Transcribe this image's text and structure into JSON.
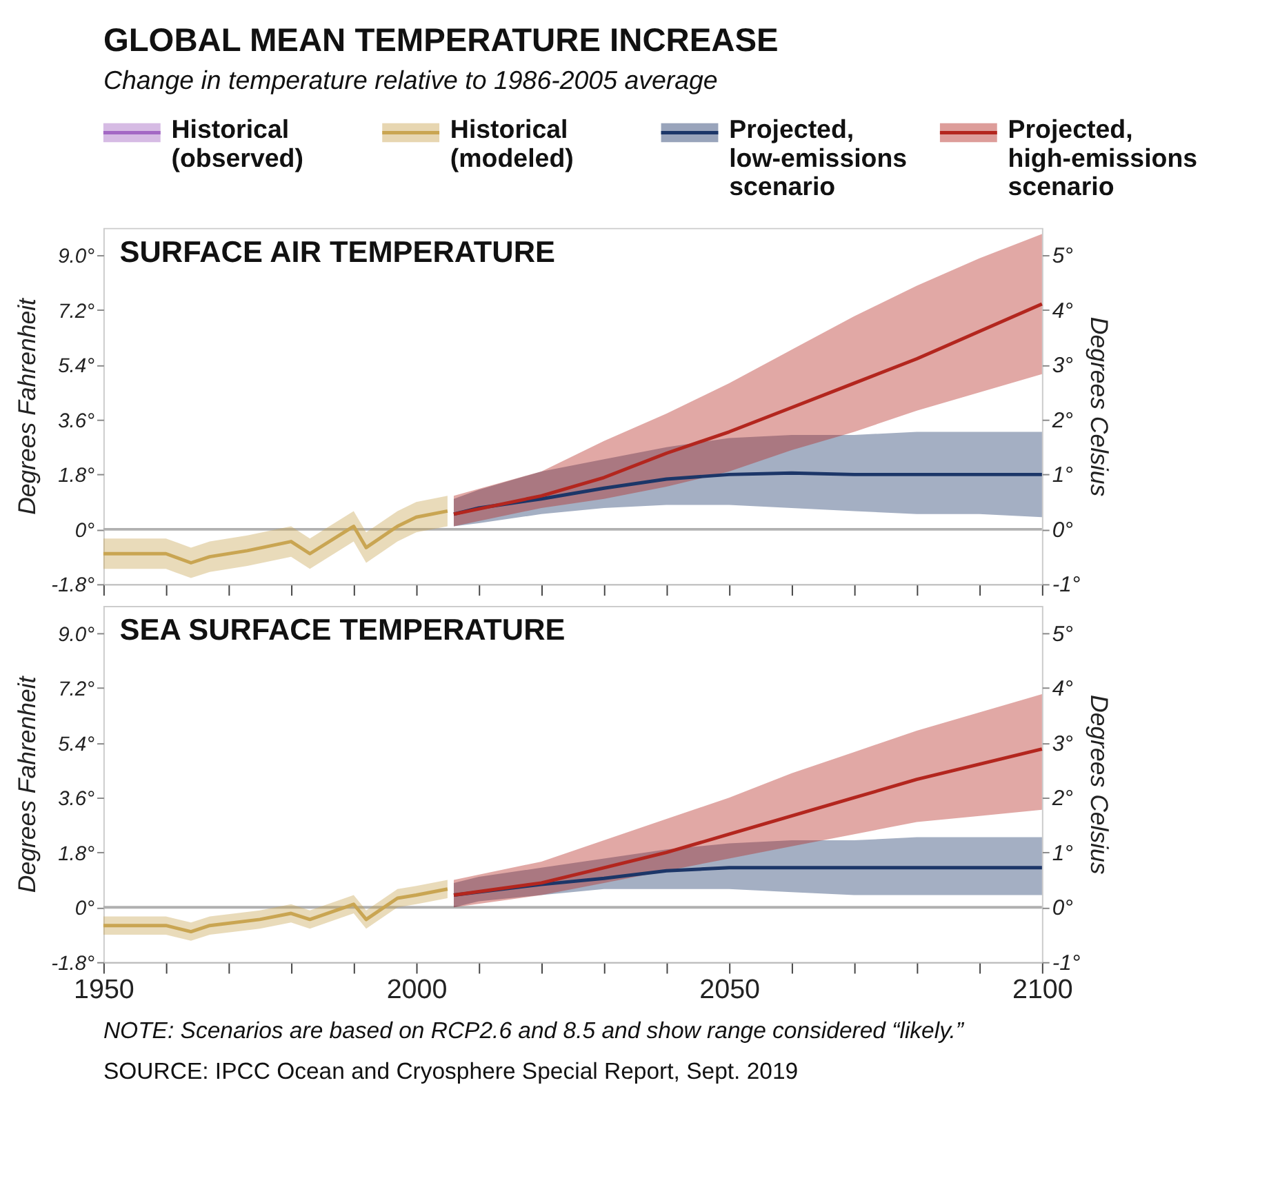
{
  "chart_data": [
    {
      "type": "line",
      "title": "SURFACE AIR TEMPERATURE",
      "ylabel": "Degrees Fahrenheit",
      "y2label": "Degrees Celsius",
      "annotations": [
        "GLOBAL MEAN TEMPERATURE INCREASE",
        "Change in temperature relative to 1986-2005 average"
      ],
      "legend": "top",
      "tick_labels": "y",
      "xlim": [
        1950,
        2100
      ],
      "xticks": [
        1950,
        {
          "value": 1960,
          "label": null
        },
        {
          "value": 1970,
          "label": null
        },
        {
          "value": 1980,
          "label": null
        },
        {
          "value": 1990,
          "label": null
        },
        2000,
        {
          "value": 2010,
          "label": null
        },
        {
          "value": 2020,
          "label": null
        },
        {
          "value": 2030,
          "label": null
        },
        {
          "value": 2040,
          "label": null
        },
        2050,
        {
          "value": 2060,
          "label": null
        },
        {
          "value": 2070,
          "label": null
        },
        {
          "value": 2080,
          "label": null
        },
        {
          "value": 2090,
          "label": null
        },
        2100
      ],
      "ylim": [
        -1.8,
        9.9
      ],
      "yticks": [
        {
          "value": -1.8,
          "label": "-1.8°"
        },
        {
          "value": 0,
          "label": "0°"
        },
        {
          "value": 1.8,
          "label": "1.8°"
        },
        {
          "value": 3.6,
          "label": "3.6°"
        },
        {
          "value": 5.4,
          "label": "5.4°"
        },
        {
          "value": 7.2,
          "label": "7.2°"
        },
        {
          "value": 9.0,
          "label": "9.0°"
        }
      ],
      "y2lim": [
        -1,
        5.5
      ],
      "y2ticks": [
        {
          "value": -1,
          "label": "-1°"
        },
        {
          "value": 0,
          "label": "0°"
        },
        {
          "value": 1,
          "label": "1°"
        },
        {
          "value": 2,
          "label": "2°"
        },
        {
          "value": 3,
          "label": "3°"
        },
        {
          "value": 4,
          "label": "4°"
        },
        {
          "value": 5,
          "label": "5°"
        }
      ],
      "ref_lines": [
        {
          "axis": "y",
          "value": 0,
          "color": "#b0b0b0"
        }
      ],
      "series": [
        {
          "name": "Historical (observed)",
          "color": "#a368c4"
        },
        {
          "name": "Historical (modeled)",
          "color": "#c9a552",
          "x": [
            1950,
            1960,
            1964,
            1967,
            1973,
            1980,
            1983,
            1990,
            1992,
            1997,
            2000,
            2005
          ],
          "values": [
            -0.8,
            -0.8,
            -1.1,
            -0.9,
            -0.7,
            -0.4,
            -0.8,
            0.1,
            -0.6,
            0.1,
            0.4,
            0.6
          ],
          "lower": [
            -1.3,
            -1.3,
            -1.6,
            -1.4,
            -1.2,
            -0.9,
            -1.3,
            -0.4,
            -1.1,
            -0.4,
            -0.1,
            0.1
          ],
          "upper": [
            -0.3,
            -0.3,
            -0.6,
            -0.4,
            -0.2,
            0.1,
            -0.3,
            0.6,
            -0.1,
            0.6,
            0.9,
            1.1
          ]
        },
        {
          "name": "Projected, low-emissions scenario",
          "color": "#1c3668",
          "x": [
            2006,
            2010,
            2020,
            2030,
            2040,
            2050,
            2060,
            2070,
            2080,
            2090,
            2100
          ],
          "values": [
            0.5,
            0.7,
            1.0,
            1.35,
            1.65,
            1.8,
            1.85,
            1.8,
            1.8,
            1.8,
            1.8
          ],
          "lower": [
            0.1,
            0.2,
            0.5,
            0.7,
            0.8,
            0.8,
            0.7,
            0.6,
            0.5,
            0.5,
            0.4
          ],
          "upper": [
            1.0,
            1.3,
            1.9,
            2.3,
            2.7,
            3.0,
            3.1,
            3.1,
            3.2,
            3.2,
            3.2
          ]
        },
        {
          "name": "Projected, high-emissions scenario",
          "color": "#b3261e",
          "x": [
            2006,
            2020,
            2030,
            2040,
            2050,
            2060,
            2070,
            2080,
            2090,
            2100
          ],
          "values": [
            0.5,
            1.1,
            1.7,
            2.5,
            3.2,
            4.0,
            4.8,
            5.6,
            6.5,
            7.4
          ],
          "lower": [
            0.1,
            0.7,
            1.0,
            1.4,
            1.9,
            2.6,
            3.2,
            3.9,
            4.5,
            5.1
          ],
          "upper": [
            1.1,
            1.9,
            2.9,
            3.8,
            4.8,
            5.9,
            7.0,
            8.0,
            8.9,
            9.7
          ]
        }
      ]
    },
    {
      "type": "line",
      "title": "SEA SURFACE TEMPERATURE",
      "ylabel": "Degrees Fahrenheit",
      "y2label": "Degrees Celsius",
      "annotations": [
        "NOTE: Scenarios are based on RCP2.6 and 8.5 and show range considered “likely.”",
        "SOURCE: IPCC Ocean and Cryosphere Special Report, Sept. 2019"
      ],
      "xlim": [
        1950,
        2100
      ],
      "xticks": [
        1950,
        {
          "value": 1960,
          "label": null
        },
        {
          "value": 1970,
          "label": null
        },
        {
          "value": 1980,
          "label": null
        },
        {
          "value": 1990,
          "label": null
        },
        2000,
        {
          "value": 2010,
          "label": null
        },
        {
          "value": 2020,
          "label": null
        },
        {
          "value": 2030,
          "label": null
        },
        {
          "value": 2040,
          "label": null
        },
        2050,
        {
          "value": 2060,
          "label": null
        },
        {
          "value": 2070,
          "label": null
        },
        {
          "value": 2080,
          "label": null
        },
        {
          "value": 2090,
          "label": null
        },
        2100
      ],
      "ylim": [
        -1.8,
        9.9
      ],
      "yticks": [
        {
          "value": -1.8,
          "label": "-1.8°"
        },
        {
          "value": 0,
          "label": "0°"
        },
        {
          "value": 1.8,
          "label": "1.8°"
        },
        {
          "value": 3.6,
          "label": "3.6°"
        },
        {
          "value": 5.4,
          "label": "5.4°"
        },
        {
          "value": 7.2,
          "label": "7.2°"
        },
        {
          "value": 9.0,
          "label": "9.0°"
        }
      ],
      "y2lim": [
        -1,
        5.5
      ],
      "y2ticks": [
        {
          "value": -1,
          "label": "-1°"
        },
        {
          "value": 0,
          "label": "0°"
        },
        {
          "value": 1,
          "label": "1°"
        },
        {
          "value": 2,
          "label": "2°"
        },
        {
          "value": 3,
          "label": "3°"
        },
        {
          "value": 4,
          "label": "4°"
        },
        {
          "value": 5,
          "label": "5°"
        }
      ],
      "ref_lines": [
        {
          "axis": "y",
          "value": 0,
          "color": "#b0b0b0"
        }
      ],
      "series": [
        {
          "color": "#c9a552",
          "x": [
            1950,
            1960,
            1964,
            1967,
            1975,
            1980,
            1983,
            1990,
            1992,
            1997,
            2000,
            2005
          ],
          "values": [
            -0.6,
            -0.6,
            -0.8,
            -0.6,
            -0.4,
            -0.2,
            -0.4,
            0.1,
            -0.4,
            0.3,
            0.4,
            0.6
          ],
          "lower": [
            -0.9,
            -0.9,
            -1.1,
            -0.9,
            -0.7,
            -0.5,
            -0.7,
            -0.2,
            -0.7,
            0.0,
            0.1,
            0.3
          ],
          "upper": [
            -0.3,
            -0.3,
            -0.5,
            -0.3,
            -0.1,
            0.1,
            -0.1,
            0.4,
            -0.1,
            0.6,
            0.7,
            0.9
          ]
        },
        {
          "color": "#1c3668",
          "x": [
            2006,
            2010,
            2020,
            2030,
            2040,
            2050,
            2060,
            2070,
            2080,
            2090,
            2100
          ],
          "values": [
            0.4,
            0.5,
            0.75,
            0.95,
            1.2,
            1.3,
            1.3,
            1.3,
            1.3,
            1.3,
            1.3
          ],
          "lower": [
            0.0,
            0.2,
            0.4,
            0.6,
            0.6,
            0.6,
            0.5,
            0.4,
            0.4,
            0.4,
            0.4
          ],
          "upper": [
            0.8,
            1.0,
            1.3,
            1.6,
            1.9,
            2.1,
            2.2,
            2.2,
            2.3,
            2.3,
            2.3
          ]
        },
        {
          "color": "#b3261e",
          "x": [
            2006,
            2020,
            2030,
            2040,
            2050,
            2060,
            2070,
            2080,
            2090,
            2100
          ],
          "values": [
            0.4,
            0.8,
            1.3,
            1.8,
            2.4,
            3.0,
            3.6,
            4.2,
            4.7,
            5.2
          ],
          "lower": [
            0.0,
            0.4,
            0.8,
            1.2,
            1.6,
            2.0,
            2.4,
            2.8,
            3.0,
            3.2
          ],
          "upper": [
            0.9,
            1.5,
            2.2,
            2.9,
            3.6,
            4.4,
            5.1,
            5.8,
            6.4,
            7.0
          ]
        }
      ]
    }
  ]
}
